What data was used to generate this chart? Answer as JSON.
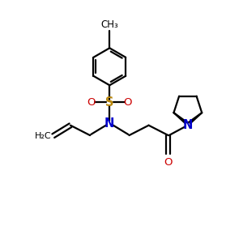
{
  "bg_color": "#ffffff",
  "bond_color": "#000000",
  "nitrogen_color": "#0000cc",
  "oxygen_color": "#cc0000",
  "sulfur_color": "#b8860b",
  "line_width": 1.6,
  "font_size": 8.5,
  "figsize": [
    3.0,
    3.0
  ],
  "dpi": 100,
  "xlim": [
    0,
    10
  ],
  "ylim": [
    0,
    10
  ]
}
